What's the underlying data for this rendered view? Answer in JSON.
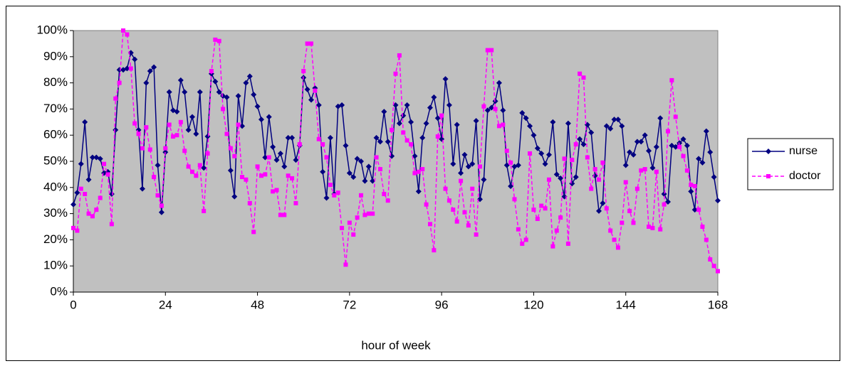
{
  "chart_data": {
    "type": "line",
    "x_label": "hour of week",
    "x": [
      0,
      1,
      2,
      3,
      4,
      5,
      6,
      7,
      8,
      9,
      10,
      11,
      12,
      13,
      14,
      15,
      16,
      17,
      18,
      19,
      20,
      21,
      22,
      23,
      24,
      25,
      26,
      27,
      28,
      29,
      30,
      31,
      32,
      33,
      34,
      35,
      36,
      37,
      38,
      39,
      40,
      41,
      42,
      43,
      44,
      45,
      46,
      47,
      48,
      49,
      50,
      51,
      52,
      53,
      54,
      55,
      56,
      57,
      58,
      59,
      60,
      61,
      62,
      63,
      64,
      65,
      66,
      67,
      68,
      69,
      70,
      71,
      72,
      73,
      74,
      75,
      76,
      77,
      78,
      79,
      80,
      81,
      82,
      83,
      84,
      85,
      86,
      87,
      88,
      89,
      90,
      91,
      92,
      93,
      94,
      95,
      96,
      97,
      98,
      99,
      100,
      101,
      102,
      103,
      104,
      105,
      106,
      107,
      108,
      109,
      110,
      111,
      112,
      113,
      114,
      115,
      116,
      117,
      118,
      119,
      120,
      121,
      122,
      123,
      124,
      125,
      126,
      127,
      128,
      129,
      130,
      131,
      132,
      133,
      134,
      135,
      136,
      137,
      138,
      139,
      140,
      141,
      142,
      143,
      144,
      145,
      146,
      147,
      148,
      149,
      150,
      151,
      152,
      153,
      154,
      155,
      156,
      157,
      158,
      159,
      160,
      161,
      162,
      163,
      164,
      165,
      166,
      167,
      168
    ],
    "series": [
      {
        "name": "nurse",
        "color": "#000080",
        "dashed": false,
        "marker": "diamond",
        "values": [
          33.5,
          38,
          49,
          65,
          43,
          51.5,
          51.5,
          51,
          45.5,
          46,
          37.5,
          62,
          85,
          85,
          85.5,
          91.5,
          89,
          62,
          39.5,
          80,
          84.5,
          86,
          48.5,
          30.5,
          53.5,
          76.5,
          69.5,
          69,
          81,
          76.5,
          62,
          67,
          60.5,
          76.5,
          47.5,
          59.5,
          83.5,
          80.5,
          76.5,
          75,
          74.5,
          46.5,
          36.5,
          75,
          63.5,
          80,
          82.5,
          75.5,
          71,
          66,
          51.5,
          67,
          55.5,
          50.5,
          53,
          48,
          59,
          59,
          50.5,
          56,
          82,
          77.5,
          73.5,
          78,
          71.5,
          46,
          36,
          59,
          37.5,
          71,
          71.5,
          56,
          45.5,
          44,
          51,
          50,
          42.5,
          48,
          42.5,
          59,
          57.5,
          69,
          57.5,
          52,
          71.5,
          64.5,
          67.5,
          71.5,
          65,
          52,
          38.5,
          59,
          64.5,
          70.5,
          74.5,
          66.5,
          58.5,
          81.5,
          71.5,
          49,
          64,
          45.5,
          52.5,
          48,
          49,
          65.5,
          35.5,
          43,
          69.5,
          70.5,
          73,
          80,
          69.5,
          48.5,
          40.5,
          48,
          48.5,
          68.5,
          66.5,
          63.5,
          60,
          55,
          53,
          49,
          52.5,
          65,
          45,
          43.5,
          36.5,
          64.5,
          41.5,
          44,
          58.5,
          56.5,
          64,
          61,
          44.5,
          31,
          34,
          63.5,
          62.5,
          66,
          66,
          63.5,
          48.5,
          53.5,
          52.5,
          57.5,
          57.5,
          60,
          54,
          47.5,
          55.5,
          66.5,
          37.5,
          34.5,
          56,
          55.5,
          57,
          58.5,
          56,
          38.5,
          31.5,
          51,
          49.5,
          61.5,
          53.5,
          44,
          35
        ]
      },
      {
        "name": "doctor",
        "color": "#ff00ff",
        "dashed": true,
        "marker": "square",
        "values": [
          24.5,
          23.5,
          39.5,
          37.5,
          30,
          29,
          31.5,
          36,
          49,
          45,
          26,
          74,
          80,
          100,
          98.5,
          85.5,
          64.5,
          60.5,
          55,
          63,
          54.5,
          44,
          37,
          33,
          55,
          64,
          59.5,
          60,
          65,
          54,
          48,
          46,
          44.5,
          48.5,
          31,
          53,
          84.5,
          96.5,
          96,
          70,
          60.5,
          55,
          52,
          64,
          44,
          43,
          34,
          23,
          48,
          44.5,
          45,
          51.5,
          38.5,
          39,
          29.5,
          29.5,
          44.5,
          43.5,
          34,
          56.5,
          84.5,
          95,
          95,
          77,
          58.5,
          56.5,
          51.5,
          41,
          37,
          38,
          24.5,
          10.5,
          26.5,
          22,
          28.5,
          37,
          29.5,
          30,
          30,
          51.5,
          47,
          37.5,
          35,
          62,
          83.5,
          90.5,
          61,
          58,
          56.5,
          45.5,
          46,
          47,
          33.5,
          26,
          16,
          59.5,
          67.5,
          39.5,
          35,
          31.5,
          27,
          42.5,
          30.5,
          25.5,
          39.5,
          22,
          48,
          71,
          92.5,
          92.5,
          70,
          63.5,
          64,
          54,
          49.5,
          35.5,
          24,
          18.5,
          20,
          53,
          31.5,
          28,
          33,
          32,
          43,
          17.5,
          23.5,
          28.5,
          51,
          18.5,
          50.5,
          56.5,
          83.5,
          82,
          51.5,
          39.5,
          47,
          43,
          49.5,
          32,
          23.5,
          20,
          17,
          26.5,
          42,
          31,
          26.5,
          39.5,
          46.5,
          47,
          25,
          24.5,
          46,
          24,
          33.5,
          61.5,
          81,
          67,
          55.5,
          52,
          46.5,
          41,
          40.5,
          31.5,
          25,
          20,
          12.5,
          10,
          8
        ]
      }
    ],
    "xlim": [
      0,
      168
    ],
    "xticks": [
      0,
      24,
      48,
      72,
      96,
      120,
      144,
      168
    ],
    "ylim": [
      0,
      100
    ],
    "yticks": [
      {
        "value": 0,
        "label": "0%"
      },
      {
        "value": 10,
        "label": "10%"
      },
      {
        "value": 20,
        "label": "20%"
      },
      {
        "value": 30,
        "label": "30%"
      },
      {
        "value": 40,
        "label": "40%"
      },
      {
        "value": 50,
        "label": "50%"
      },
      {
        "value": 60,
        "label": "60%"
      },
      {
        "value": 70,
        "label": "70%"
      },
      {
        "value": 80,
        "label": "80%"
      },
      {
        "value": 90,
        "label": "90%"
      },
      {
        "value": 100,
        "label": "100%"
      }
    ],
    "plot_background": "#c0c0c0",
    "grid": false,
    "legend": "right"
  }
}
